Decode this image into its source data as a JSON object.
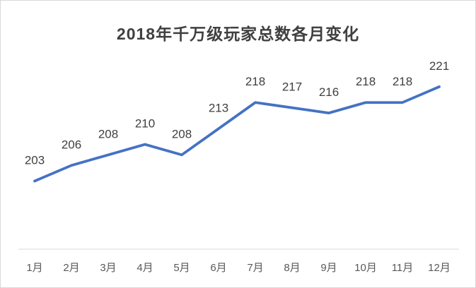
{
  "page": {
    "background": "#ffffff",
    "border_color": "#d9d9d9"
  },
  "chart_data": {
    "type": "line",
    "title": "2018年千万级玩家总数各月变化",
    "categories": [
      "1月",
      "2月",
      "3月",
      "4月",
      "5月",
      "6月",
      "7月",
      "8月",
      "9月",
      "10月",
      "11月",
      "12月"
    ],
    "values": [
      203,
      206,
      208,
      210,
      208,
      213,
      218,
      217,
      216,
      218,
      218,
      221
    ],
    "xlabel": "",
    "ylabel": "",
    "ylim": [
      190,
      228
    ],
    "grid": false,
    "legend": false,
    "data_labels": true,
    "styles": {
      "line_color": "#4472C4",
      "line_width": 3.75,
      "title_color": "#404040",
      "data_label_color": "#404040",
      "axis_label_color": "#595959",
      "axis_line_color": "#d9d9d9"
    }
  }
}
